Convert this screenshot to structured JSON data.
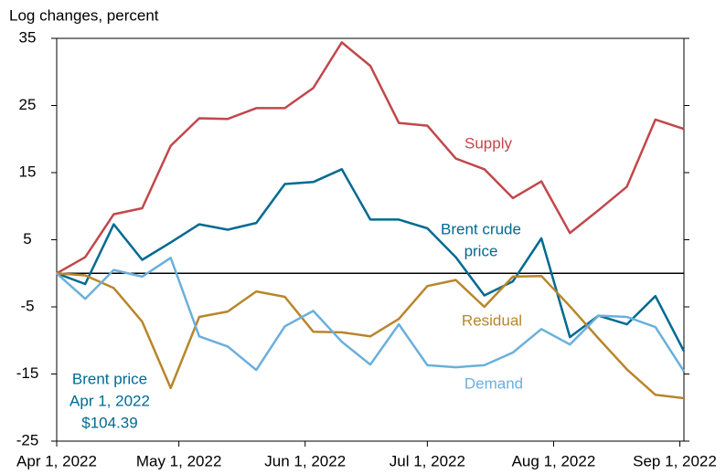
{
  "chart_data": {
    "type": "line",
    "y_axis_label": "Log changes, percent",
    "x": [
      "2022-04-01",
      "2022-04-08",
      "2022-04-15",
      "2022-04-22",
      "2022-04-29",
      "2022-05-06",
      "2022-05-13",
      "2022-05-20",
      "2022-05-27",
      "2022-06-03",
      "2022-06-10",
      "2022-06-17",
      "2022-06-24",
      "2022-07-01",
      "2022-07-08",
      "2022-07-15",
      "2022-07-22",
      "2022-07-29",
      "2022-08-05",
      "2022-08-12",
      "2022-08-19",
      "2022-08-26",
      "2022-09-02"
    ],
    "xlim": [
      "2022-04-01",
      "2022-09-02"
    ],
    "xticks": [
      {
        "value": "2022-04-01",
        "label": "Apr 1, 2022"
      },
      {
        "value": "2022-05-01",
        "label": "May 1, 2022"
      },
      {
        "value": "2022-06-01",
        "label": "Jun 1, 2022"
      },
      {
        "value": "2022-07-01",
        "label": "Jul 1, 2022"
      },
      {
        "value": "2022-08-01",
        "label": "Aug 1, 2022"
      },
      {
        "value": "2022-09-01",
        "label": "Sep 1, 2022"
      }
    ],
    "ylim": [
      -25,
      35
    ],
    "yticks": [
      35,
      25,
      15,
      5,
      -5,
      -15,
      -25
    ],
    "hline": 0,
    "series": [
      {
        "label": [
          "Supply"
        ],
        "color": "#c1474b",
        "values": [
          0,
          2.4,
          8.8,
          9.7,
          19,
          23.1,
          23,
          24.6,
          24.6,
          27.6,
          34.4,
          30.9,
          22.4,
          22,
          17.1,
          15.5,
          11.2,
          13.7,
          6,
          9.4,
          12.9,
          22.9,
          21.5
        ]
      },
      {
        "label": [
          "Brent crude",
          "price"
        ],
        "color": "#006a91",
        "values": [
          0,
          -1.6,
          7.3,
          2,
          4.6,
          7.3,
          6.5,
          7.5,
          13.3,
          13.6,
          15.5,
          8,
          8,
          6.7,
          2.4,
          -3.3,
          -1.2,
          5.2,
          -9.5,
          -6.3,
          -7.6,
          -3.4,
          -11.6
        ]
      },
      {
        "label": [
          "Residual"
        ],
        "color": "#b8862b",
        "values": [
          0,
          -0.3,
          -2.2,
          -7.2,
          -17.1,
          -6.5,
          -5.7,
          -2.7,
          -3.5,
          -8.7,
          -8.8,
          -9.4,
          -6.8,
          -1.9,
          -1,
          -5,
          -0.5,
          -0.4,
          -4.9,
          -9.7,
          -14.3,
          -18.1,
          -18.6
        ]
      },
      {
        "label": [
          "Demand"
        ],
        "color": "#6ab0dc",
        "values": [
          0,
          -3.8,
          0.5,
          -0.5,
          2.3,
          -9.4,
          -10.9,
          -14.4,
          -7.9,
          -5.6,
          -10.2,
          -13.6,
          -7.6,
          -13.7,
          -14,
          -13.7,
          -11.8,
          -8.3,
          -10.6,
          -6.3,
          -6.5,
          -8,
          -14.6
        ]
      }
    ],
    "annotation": {
      "lines": [
        "Brent price",
        "Apr 1, 2022",
        "$104.39"
      ],
      "color": "#006a91"
    }
  }
}
